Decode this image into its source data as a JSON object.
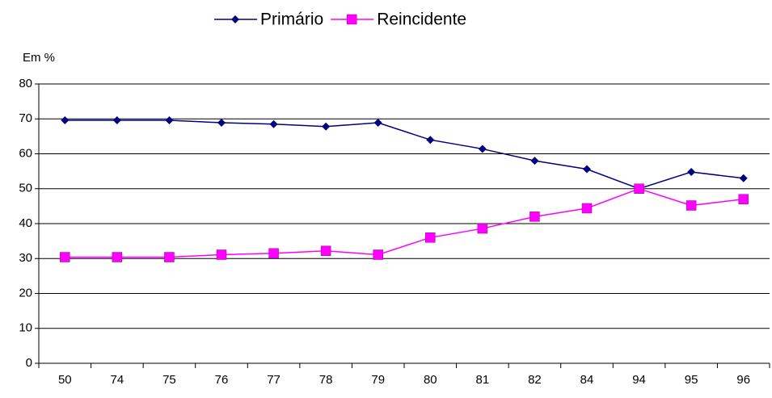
{
  "chart_data": {
    "type": "line",
    "y_label": "Em %",
    "categories": [
      "50",
      "74",
      "75",
      "76",
      "77",
      "78",
      "79",
      "80",
      "81",
      "82",
      "84",
      "94",
      "95",
      "96"
    ],
    "series": [
      {
        "name": "Primário",
        "color": "#000080",
        "marker": "diamond",
        "values": [
          69.6,
          69.6,
          69.6,
          68.9,
          68.5,
          67.8,
          68.9,
          64,
          61.4,
          58,
          55.6,
          50,
          54.8,
          53
        ]
      },
      {
        "name": "Reincidente",
        "color": "#ff00ff",
        "marker": "square",
        "values": [
          30.4,
          30.4,
          30.4,
          31.1,
          31.5,
          32.2,
          31.1,
          36,
          38.6,
          42,
          44.4,
          50,
          45.2,
          47
        ]
      }
    ],
    "ylim": [
      0,
      80
    ],
    "yticks": [
      0,
      10,
      20,
      30,
      40,
      50,
      60,
      70,
      80
    ],
    "grid": true
  }
}
